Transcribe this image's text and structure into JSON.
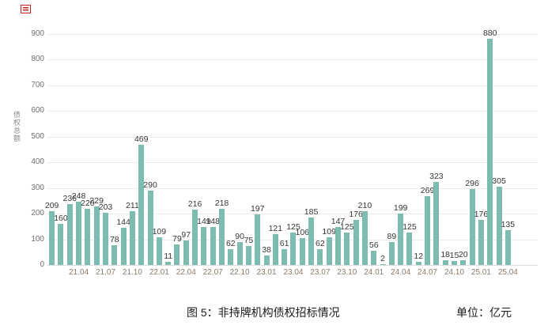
{
  "stamp": {
    "color": "#c81e1e"
  },
  "chart_data": {
    "type": "bar",
    "title": "图 5：非持牌机构债权招标情况",
    "unit_label": "单位：亿元",
    "ylabel": "债权总额",
    "ylim": [
      0,
      940
    ],
    "grid": true,
    "legend": "none",
    "bar_color": "#7cbcb1",
    "yticks": [
      0,
      100,
      200,
      300,
      400,
      500,
      600,
      700,
      800,
      900
    ],
    "x": [
      "21.01",
      "21.02",
      "21.03",
      "21.04",
      "21.05",
      "21.06",
      "21.07",
      "21.08",
      "21.09",
      "21.10",
      "21.11",
      "21.12",
      "22.01",
      "22.02",
      "22.03",
      "22.04",
      "22.05",
      "22.06",
      "22.07",
      "22.08",
      "22.09",
      "22.10",
      "22.11",
      "22.12",
      "23.01",
      "23.02",
      "23.03",
      "23.04",
      "23.05",
      "23.06",
      "23.07",
      "23.08",
      "23.09",
      "23.10",
      "23.11",
      "23.12",
      "24.01",
      "24.02",
      "24.03",
      "24.04",
      "24.05",
      "24.06",
      "24.07",
      "24.08",
      "24.09",
      "24.10",
      "24.11",
      "24.12",
      "25.01",
      "25.02",
      "25.03",
      "25.04"
    ],
    "values": [
      209,
      160,
      236,
      248,
      220,
      229,
      203,
      78,
      144,
      211,
      469,
      290,
      109,
      11,
      79,
      97,
      216,
      149,
      148,
      218,
      62,
      90,
      75,
      197,
      38,
      121,
      61,
      125,
      106,
      185,
      62,
      109,
      147,
      125,
      176,
      210,
      56,
      2,
      89,
      199,
      125,
      12,
      269,
      323,
      18,
      15,
      20,
      296,
      176,
      880,
      305,
      135
    ],
    "xtick_labels": [
      "21.04",
      "21.07",
      "21.10",
      "22.01",
      "22.04",
      "22.07",
      "22.10",
      "23.01",
      "23.04",
      "23.07",
      "23.10",
      "24.01",
      "24.04",
      "24.07",
      "24.10",
      "25.01",
      "25.04"
    ],
    "xtick_first_index": 3,
    "xtick_every": 3
  }
}
